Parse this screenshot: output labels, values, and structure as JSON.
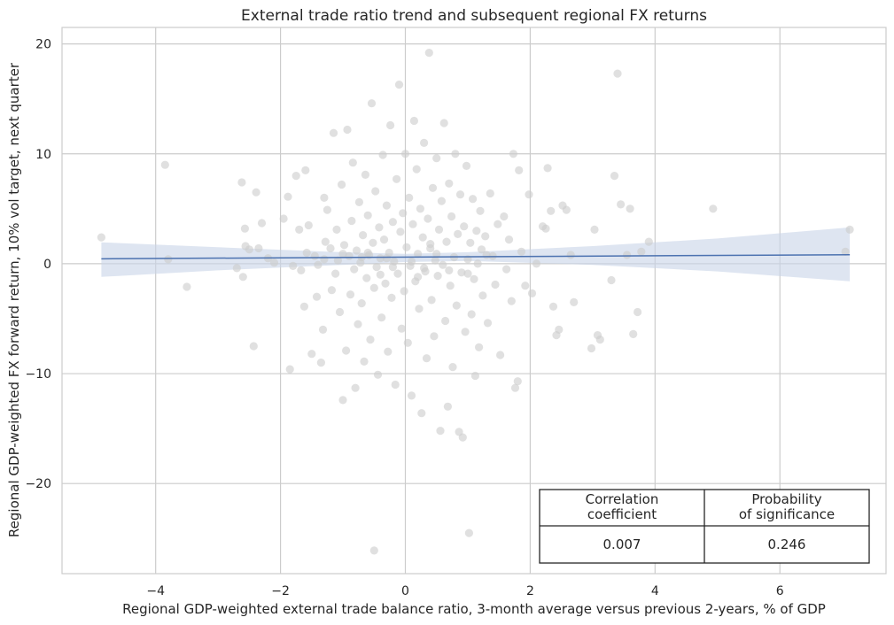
{
  "chart_data": {
    "type": "scatter",
    "title": "External trade ratio trend and subsequent regional FX returns",
    "xlabel": "Regional GDP-weighted external trade balance ratio, 3-month average versus previous 2-years, % of GDP",
    "ylabel": "Regional GDP-weighted FX forward return, 10% vol target, next quarter",
    "xlim": [
      -5.5,
      7.7
    ],
    "ylim": [
      -28.2,
      21.5
    ],
    "xticks": [
      -4,
      -2,
      0,
      2,
      4,
      6
    ],
    "yticks": [
      -20,
      -10,
      0,
      10,
      20
    ],
    "xtick_labels": [
      "−4",
      "−2",
      "0",
      "2",
      "4",
      "6"
    ],
    "ytick_labels": [
      "−20",
      "−10",
      "0",
      "10",
      "20"
    ],
    "grid": true,
    "point_color": "#cccccc",
    "line_color": "#4c72b0",
    "band_color": "#c8d3e8",
    "points": [
      {
        "x": -4.87,
        "y": 2.4
      },
      {
        "x": -3.85,
        "y": 9.0
      },
      {
        "x": -3.8,
        "y": 0.4
      },
      {
        "x": -3.5,
        "y": -2.1
      },
      {
        "x": -2.7,
        "y": -0.4
      },
      {
        "x": -2.62,
        "y": 7.4
      },
      {
        "x": -2.6,
        "y": -1.2
      },
      {
        "x": -2.57,
        "y": 3.2
      },
      {
        "x": -2.56,
        "y": 1.6
      },
      {
        "x": -2.5,
        "y": 1.3
      },
      {
        "x": -2.43,
        "y": -7.5
      },
      {
        "x": -2.39,
        "y": 6.5
      },
      {
        "x": -2.35,
        "y": 1.4
      },
      {
        "x": -2.3,
        "y": 3.7
      },
      {
        "x": -2.2,
        "y": 0.5
      },
      {
        "x": -2.1,
        "y": 0.1
      },
      {
        "x": -1.95,
        "y": 4.1
      },
      {
        "x": -1.88,
        "y": 6.1
      },
      {
        "x": -1.85,
        "y": -9.6
      },
      {
        "x": -1.8,
        "y": -0.2
      },
      {
        "x": -1.75,
        "y": 8.0
      },
      {
        "x": -1.7,
        "y": 3.1
      },
      {
        "x": -1.67,
        "y": -0.6
      },
      {
        "x": -1.62,
        "y": -3.9
      },
      {
        "x": -1.6,
        "y": 8.5
      },
      {
        "x": -1.58,
        "y": 1.0
      },
      {
        "x": -1.55,
        "y": 3.5
      },
      {
        "x": -1.5,
        "y": -8.2
      },
      {
        "x": -1.45,
        "y": 0.7
      },
      {
        "x": -1.42,
        "y": -3.0
      },
      {
        "x": -1.4,
        "y": -0.1
      },
      {
        "x": -1.35,
        "y": -9.0
      },
      {
        "x": -1.32,
        "y": -6.0
      },
      {
        "x": -1.3,
        "y": 6.0
      },
      {
        "x": -1.28,
        "y": 2.0
      },
      {
        "x": -1.25,
        "y": 4.9
      },
      {
        "x": -1.2,
        "y": 1.4
      },
      {
        "x": -1.18,
        "y": -2.4
      },
      {
        "x": -1.15,
        "y": 11.9
      },
      {
        "x": -1.12,
        "y": -0.9
      },
      {
        "x": -1.1,
        "y": 3.1
      },
      {
        "x": -1.08,
        "y": 0.3
      },
      {
        "x": -1.05,
        "y": -4.4
      },
      {
        "x": -1.02,
        "y": 7.2
      },
      {
        "x": -1.0,
        "y": -12.4
      },
      {
        "x": -0.98,
        "y": 1.7
      },
      {
        "x": -0.95,
        "y": -7.9
      },
      {
        "x": -0.93,
        "y": 12.2
      },
      {
        "x": -0.9,
        "y": 0.7
      },
      {
        "x": -0.88,
        "y": -2.8
      },
      {
        "x": -0.86,
        "y": 3.9
      },
      {
        "x": -0.84,
        "y": 9.2
      },
      {
        "x": -0.82,
        "y": -0.5
      },
      {
        "x": -0.8,
        "y": -11.3
      },
      {
        "x": -0.78,
        "y": 1.2
      },
      {
        "x": -0.76,
        "y": -5.5
      },
      {
        "x": -0.74,
        "y": 5.6
      },
      {
        "x": -0.72,
        "y": 0.1
      },
      {
        "x": -0.7,
        "y": -3.6
      },
      {
        "x": -0.68,
        "y": 2.6
      },
      {
        "x": -0.66,
        "y": -8.9
      },
      {
        "x": -0.64,
        "y": 8.1
      },
      {
        "x": -0.62,
        "y": -1.3
      },
      {
        "x": -0.6,
        "y": 4.4
      },
      {
        "x": -0.58,
        "y": 0.8
      },
      {
        "x": -0.56,
        "y": -6.9
      },
      {
        "x": -0.54,
        "y": 14.6
      },
      {
        "x": -0.52,
        "y": 1.9
      },
      {
        "x": -0.5,
        "y": -2.2
      },
      {
        "x": -0.48,
        "y": 6.6
      },
      {
        "x": -0.46,
        "y": -0.3
      },
      {
        "x": -0.44,
        "y": -10.1
      },
      {
        "x": -0.42,
        "y": 3.3
      },
      {
        "x": -0.4,
        "y": 0.5
      },
      {
        "x": -0.38,
        "y": -4.9
      },
      {
        "x": -0.36,
        "y": 9.9
      },
      {
        "x": -0.34,
        "y": 2.2
      },
      {
        "x": -0.32,
        "y": -1.8
      },
      {
        "x": -0.3,
        "y": 5.3
      },
      {
        "x": -0.28,
        "y": -8.0
      },
      {
        "x": -0.26,
        "y": 1.0
      },
      {
        "x": -0.24,
        "y": 12.6
      },
      {
        "x": -0.22,
        "y": -3.1
      },
      {
        "x": -0.2,
        "y": 3.8
      },
      {
        "x": -0.18,
        "y": 0.2
      },
      {
        "x": -0.16,
        "y": -11.0
      },
      {
        "x": -0.14,
        "y": 7.7
      },
      {
        "x": -0.12,
        "y": -0.9
      },
      {
        "x": -0.1,
        "y": 16.3
      },
      {
        "x": -0.08,
        "y": 2.9
      },
      {
        "x": -0.06,
        "y": -5.9
      },
      {
        "x": -0.04,
        "y": 4.6
      },
      {
        "x": -0.02,
        "y": -2.5
      },
      {
        "x": 0.0,
        "y": 10.0
      },
      {
        "x": 0.02,
        "y": 1.5
      },
      {
        "x": 0.04,
        "y": -7.2
      },
      {
        "x": 0.06,
        "y": 6.0
      },
      {
        "x": 0.08,
        "y": -0.2
      },
      {
        "x": 0.1,
        "y": -12.0
      },
      {
        "x": 0.12,
        "y": 3.6
      },
      {
        "x": 0.14,
        "y": 13.0
      },
      {
        "x": 0.16,
        "y": -1.6
      },
      {
        "x": 0.18,
        "y": 8.6
      },
      {
        "x": 0.2,
        "y": 0.9
      },
      {
        "x": 0.22,
        "y": -4.1
      },
      {
        "x": 0.24,
        "y": 5.0
      },
      {
        "x": 0.26,
        "y": -13.6
      },
      {
        "x": 0.28,
        "y": 2.4
      },
      {
        "x": 0.3,
        "y": 11.0
      },
      {
        "x": 0.32,
        "y": -0.7
      },
      {
        "x": 0.34,
        "y": -8.6
      },
      {
        "x": 0.36,
        "y": 4.1
      },
      {
        "x": 0.38,
        "y": 19.2
      },
      {
        "x": 0.4,
        "y": 1.8
      },
      {
        "x": 0.42,
        "y": -3.3
      },
      {
        "x": 0.44,
        "y": 6.9
      },
      {
        "x": 0.46,
        "y": -6.6
      },
      {
        "x": 0.48,
        "y": 0.3
      },
      {
        "x": 0.5,
        "y": 9.6
      },
      {
        "x": 0.52,
        "y": -1.1
      },
      {
        "x": 0.54,
        "y": 3.1
      },
      {
        "x": 0.56,
        "y": -15.2
      },
      {
        "x": 0.58,
        "y": 5.7
      },
      {
        "x": 0.6,
        "y": -0.1
      },
      {
        "x": 0.62,
        "y": 12.8
      },
      {
        "x": 0.64,
        "y": -5.2
      },
      {
        "x": 0.66,
        "y": 2.0
      },
      {
        "x": 0.68,
        "y": -13.0
      },
      {
        "x": 0.7,
        "y": 7.3
      },
      {
        "x": 0.72,
        "y": -2.0
      },
      {
        "x": 0.74,
        "y": 4.3
      },
      {
        "x": 0.76,
        "y": -9.4
      },
      {
        "x": 0.78,
        "y": 0.6
      },
      {
        "x": 0.8,
        "y": 10.0
      },
      {
        "x": 0.82,
        "y": -3.8
      },
      {
        "x": 0.84,
        "y": 2.7
      },
      {
        "x": 0.86,
        "y": -15.3
      },
      {
        "x": 0.88,
        "y": 6.3
      },
      {
        "x": 0.9,
        "y": -0.8
      },
      {
        "x": 0.92,
        "y": -15.8
      },
      {
        "x": 0.94,
        "y": 3.4
      },
      {
        "x": 0.96,
        "y": -6.2
      },
      {
        "x": 0.98,
        "y": 8.9
      },
      {
        "x": 1.0,
        "y": 0.4
      },
      {
        "x": 1.02,
        "y": -24.5
      },
      {
        "x": 1.04,
        "y": 1.9
      },
      {
        "x": 1.06,
        "y": -4.6
      },
      {
        "x": 1.08,
        "y": 5.9
      },
      {
        "x": 1.1,
        "y": -1.4
      },
      {
        "x": 1.12,
        "y": -10.2
      },
      {
        "x": 1.14,
        "y": 3.0
      },
      {
        "x": 1.16,
        "y": 0.0
      },
      {
        "x": 1.18,
        "y": -7.6
      },
      {
        "x": 1.2,
        "y": 4.8
      },
      {
        "x": 1.22,
        "y": 1.3
      },
      {
        "x": 1.24,
        "y": -2.9
      },
      {
        "x": 1.28,
        "y": 2.5
      },
      {
        "x": 1.32,
        "y": -5.4
      },
      {
        "x": 1.36,
        "y": 6.4
      },
      {
        "x": 1.4,
        "y": 0.7
      },
      {
        "x": 1.44,
        "y": -1.9
      },
      {
        "x": 1.48,
        "y": 3.6
      },
      {
        "x": 1.52,
        "y": -8.3
      },
      {
        "x": 1.58,
        "y": 4.3
      },
      {
        "x": 1.62,
        "y": -0.5
      },
      {
        "x": 1.66,
        "y": 2.2
      },
      {
        "x": 1.7,
        "y": -3.4
      },
      {
        "x": 1.73,
        "y": 10.0
      },
      {
        "x": 1.76,
        "y": -11.3
      },
      {
        "x": 1.8,
        "y": -10.7
      },
      {
        "x": 1.82,
        "y": 8.5
      },
      {
        "x": 1.86,
        "y": 1.1
      },
      {
        "x": 1.92,
        "y": -2.0
      },
      {
        "x": 1.98,
        "y": 6.3
      },
      {
        "x": 2.03,
        "y": -2.7
      },
      {
        "x": 2.1,
        "y": 0.0
      },
      {
        "x": 2.2,
        "y": 3.4
      },
      {
        "x": 2.25,
        "y": 3.2
      },
      {
        "x": 2.28,
        "y": 8.7
      },
      {
        "x": 2.33,
        "y": 4.8
      },
      {
        "x": 2.37,
        "y": -3.9
      },
      {
        "x": 2.42,
        "y": -6.5
      },
      {
        "x": 2.46,
        "y": -6.0
      },
      {
        "x": 2.52,
        "y": 5.3
      },
      {
        "x": 2.58,
        "y": 4.9
      },
      {
        "x": 2.65,
        "y": 0.8
      },
      {
        "x": 2.7,
        "y": -3.5
      },
      {
        "x": 2.98,
        "y": -7.7
      },
      {
        "x": 3.03,
        "y": 3.1
      },
      {
        "x": 3.08,
        "y": -6.5
      },
      {
        "x": 3.12,
        "y": -6.9
      },
      {
        "x": 3.3,
        "y": -1.5
      },
      {
        "x": 3.35,
        "y": 8.0
      },
      {
        "x": 3.4,
        "y": 17.3
      },
      {
        "x": 3.45,
        "y": 5.4
      },
      {
        "x": 3.55,
        "y": 0.8
      },
      {
        "x": 3.6,
        "y": 5.0
      },
      {
        "x": 3.65,
        "y": -6.4
      },
      {
        "x": 3.72,
        "y": -4.4
      },
      {
        "x": 3.78,
        "y": 1.1
      },
      {
        "x": 3.9,
        "y": 2.0
      },
      {
        "x": 4.93,
        "y": 5.0
      },
      {
        "x": 7.05,
        "y": 1.1
      },
      {
        "x": 7.12,
        "y": 3.1
      },
      {
        "x": -0.5,
        "y": -26.1
      },
      {
        "x": -0.6,
        "y": 1.0
      },
      {
        "x": -0.3,
        "y": 0.5
      },
      {
        "x": 0.3,
        "y": -0.4
      },
      {
        "x": 0.5,
        "y": 0.9
      },
      {
        "x": -0.2,
        "y": -0.3
      },
      {
        "x": 0.1,
        "y": 0.2
      },
      {
        "x": 0.4,
        "y": 1.4
      },
      {
        "x": -0.4,
        "y": -1.0
      },
      {
        "x": 0.7,
        "y": -0.6
      },
      {
        "x": -0.7,
        "y": 0.6
      },
      {
        "x": 0.2,
        "y": -1.2
      },
      {
        "x": -1.0,
        "y": 0.9
      },
      {
        "x": 1.0,
        "y": -0.9
      },
      {
        "x": -1.3,
        "y": 0.4
      },
      {
        "x": 1.3,
        "y": 0.8
      }
    ],
    "regression": {
      "x": [
        -4.87,
        7.12
      ],
      "y": [
        0.45,
        0.82
      ]
    },
    "confidence_band": {
      "x": [
        -4.87,
        -3.0,
        -1.0,
        0.0,
        1.0,
        3.0,
        5.0,
        7.12
      ],
      "upper": [
        1.95,
        1.5,
        1.05,
        0.9,
        1.05,
        1.6,
        2.3,
        3.3
      ],
      "lower": [
        -1.2,
        -0.6,
        -0.1,
        0.15,
        0.25,
        -0.1,
        -0.7,
        -1.6
      ]
    },
    "table": {
      "headers": [
        [
          "Correlation",
          "coefficient"
        ],
        [
          "Probability",
          "of significance"
        ]
      ],
      "values": [
        "0.007",
        "0.246"
      ],
      "placement": "bottom-right"
    }
  }
}
